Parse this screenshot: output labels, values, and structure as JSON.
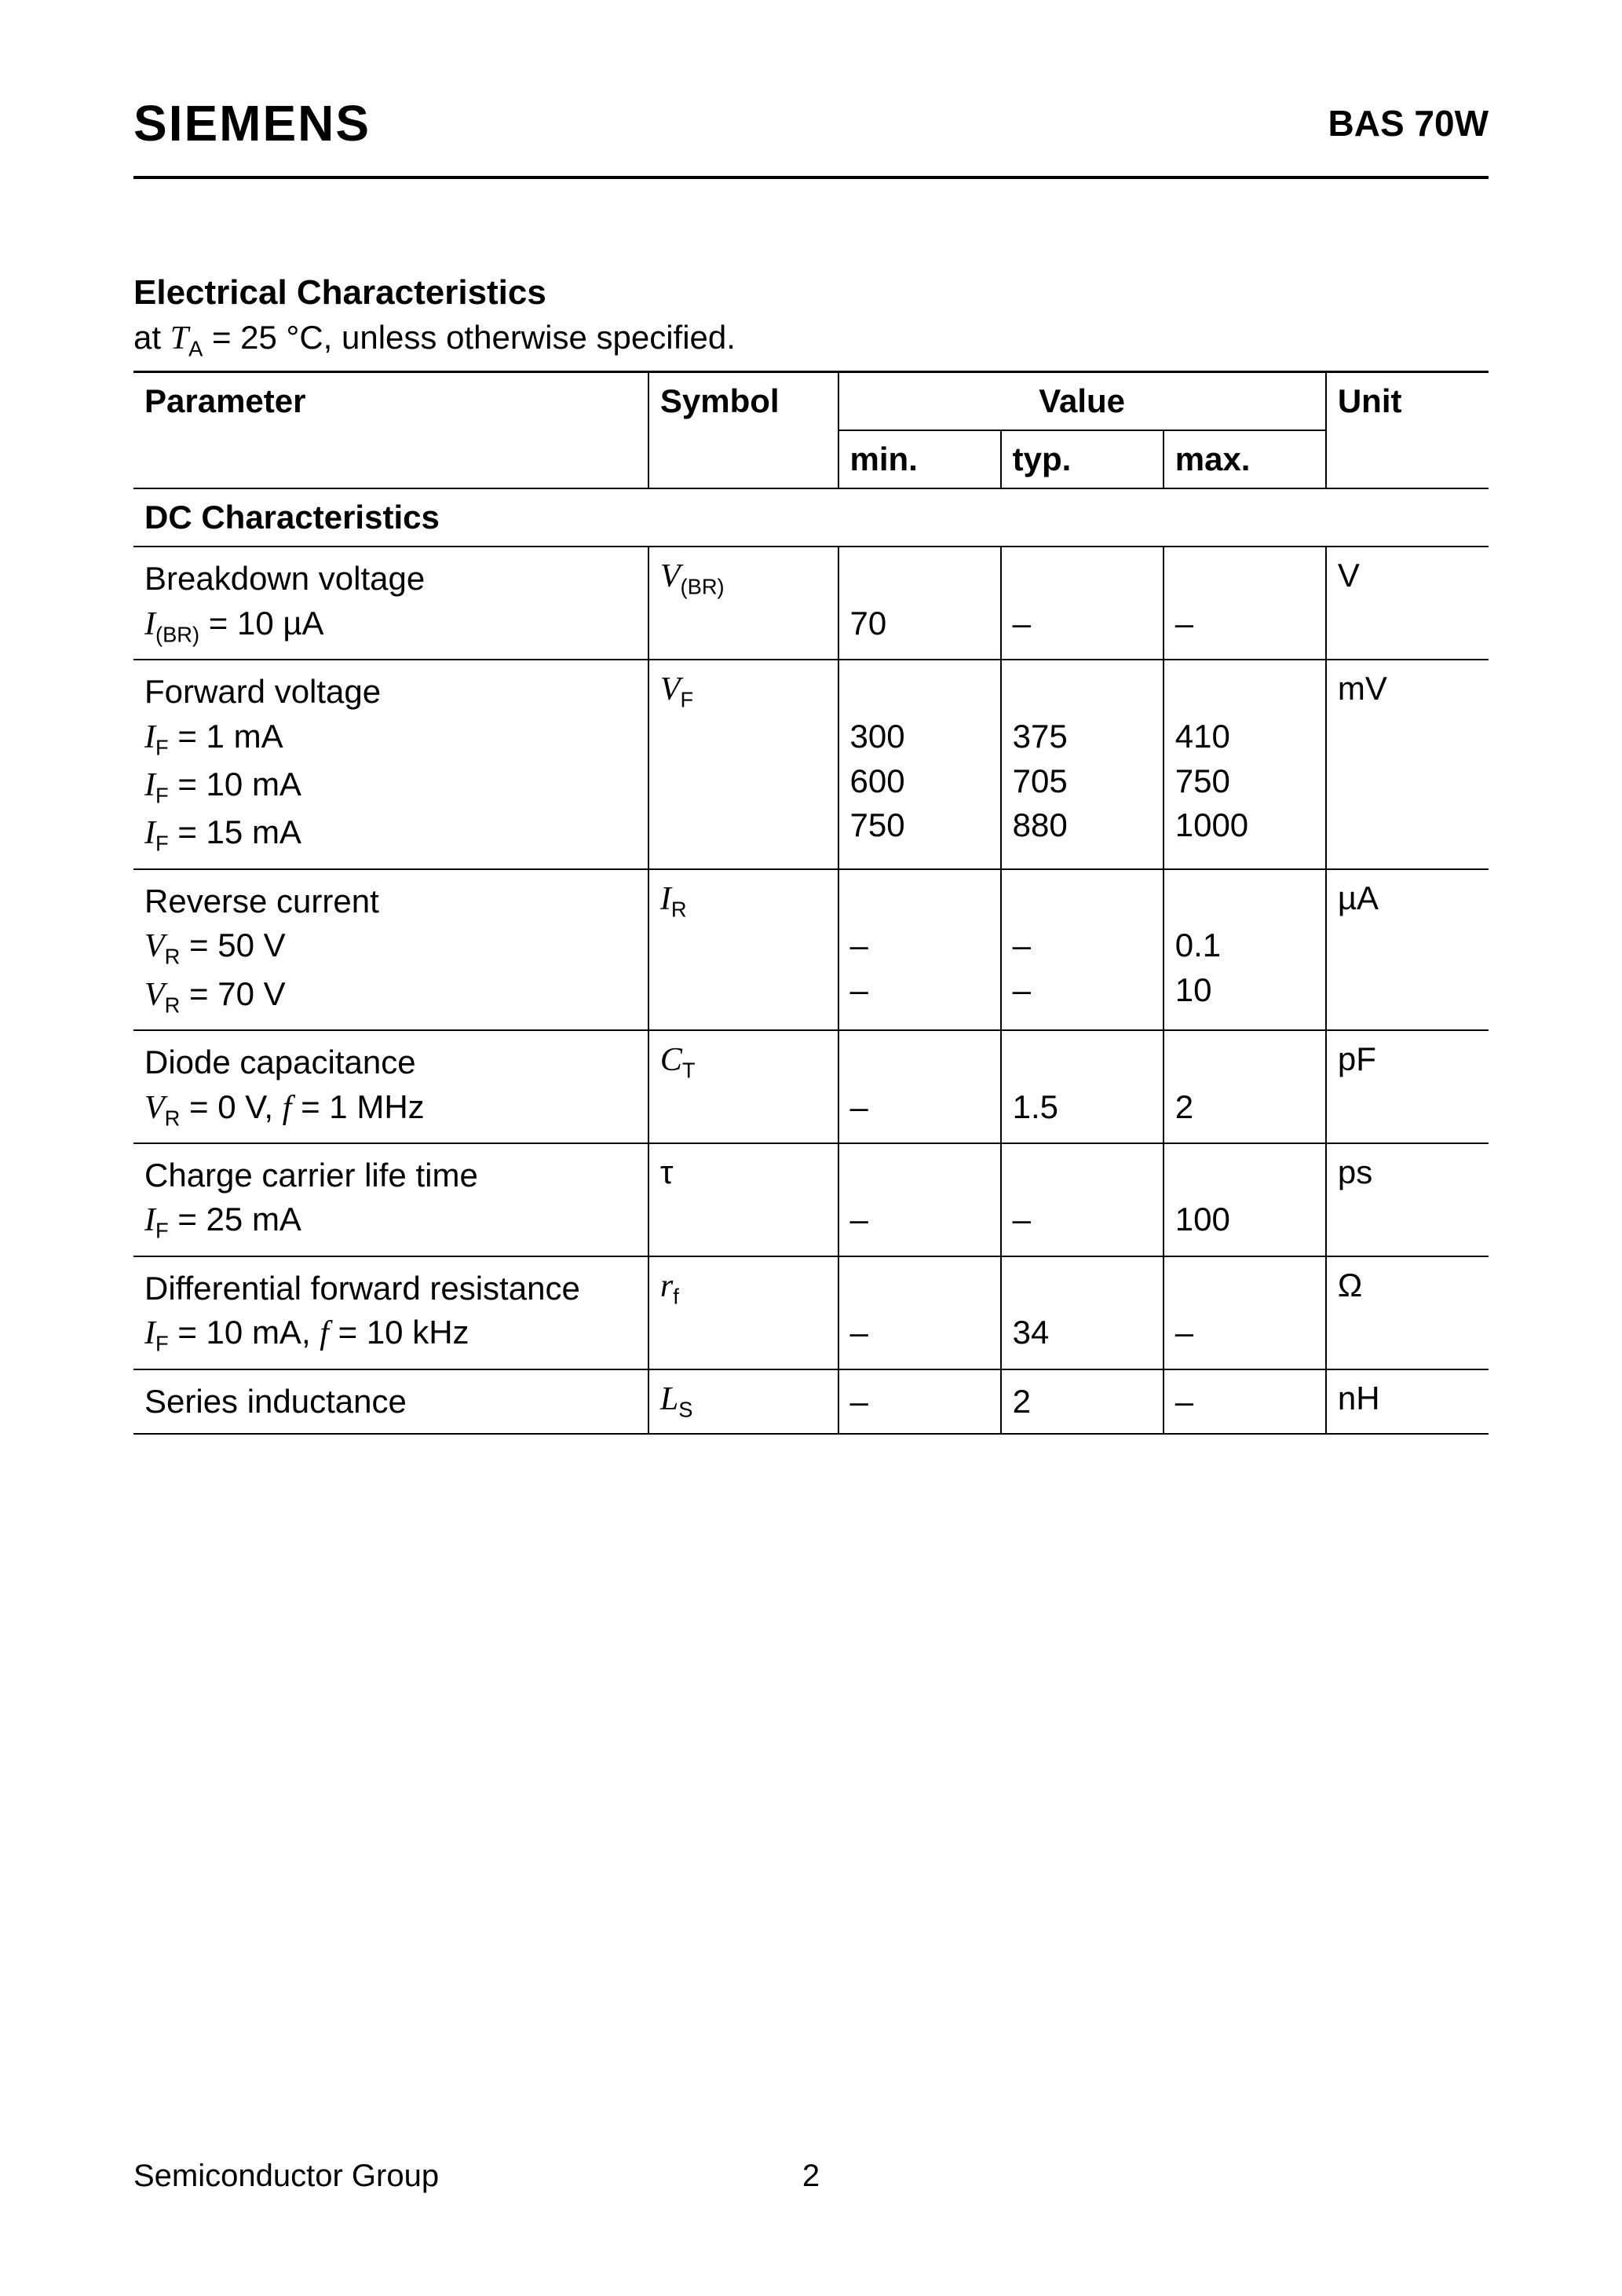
{
  "header": {
    "logo": "SIEMENS",
    "part_number": "BAS 70W"
  },
  "section": {
    "title": "Electrical Characteristics",
    "subtitle_prefix": "at ",
    "subtitle_symbol": "T",
    "subtitle_sub": "A",
    "subtitle_suffix": " = 25 °C, unless otherwise specified."
  },
  "table": {
    "headers": {
      "parameter": "Parameter",
      "symbol": "Symbol",
      "value": "Value",
      "unit": "Unit",
      "min": "min.",
      "typ": "typ.",
      "max": "max."
    },
    "section_header": "DC Characteristics",
    "rows": [
      {
        "param_title": "Breakdown voltage",
        "conditions": [
          {
            "sym": "I",
            "sub": "(BR)",
            "rest": " = 10 µA"
          }
        ],
        "symbol": {
          "sym": "V",
          "sub": "(BR)"
        },
        "min": [
          "",
          "70"
        ],
        "typ": [
          "",
          "–"
        ],
        "max": [
          "",
          "–"
        ],
        "unit": "V"
      },
      {
        "param_title": "Forward voltage",
        "conditions": [
          {
            "sym": "I",
            "sub": "F",
            "rest": " = 1 mA"
          },
          {
            "sym": "I",
            "sub": "F",
            "rest": " = 10 mA"
          },
          {
            "sym": "I",
            "sub": "F",
            "rest": " = 15 mA"
          }
        ],
        "symbol": {
          "sym": "V",
          "sub": "F"
        },
        "min": [
          "",
          "300",
          "600",
          "750"
        ],
        "typ": [
          "",
          "375",
          "705",
          "880"
        ],
        "max": [
          "",
          "410",
          "750",
          "1000"
        ],
        "unit": "mV"
      },
      {
        "param_title": "Reverse current",
        "conditions": [
          {
            "sym": "V",
            "sub": "R",
            "rest": " = 50 V"
          },
          {
            "sym": "V",
            "sub": "R",
            "rest": " = 70 V"
          }
        ],
        "symbol": {
          "sym": "I",
          "sub": "R"
        },
        "min": [
          "",
          "–",
          "–"
        ],
        "typ": [
          "",
          "–",
          "–"
        ],
        "max": [
          "",
          "0.1",
          "10"
        ],
        "unit": "µA"
      },
      {
        "param_title": "Diode capacitance",
        "conditions": [
          {
            "sym": "V",
            "sub": "R",
            "rest": " = 0 V, ",
            "sym2": "f",
            "rest2": " = 1 MHz"
          }
        ],
        "symbol": {
          "sym": "C",
          "sub": "T"
        },
        "min": [
          "",
          "–"
        ],
        "typ": [
          "",
          "1.5"
        ],
        "max": [
          "",
          "2"
        ],
        "unit": "pF"
      },
      {
        "param_title": "Charge carrier life time",
        "conditions": [
          {
            "sym": "I",
            "sub": "F",
            "rest": " = 25 mA"
          }
        ],
        "symbol": {
          "plain": "τ"
        },
        "min": [
          "",
          "–"
        ],
        "typ": [
          "",
          "–"
        ],
        "max": [
          "",
          "100"
        ],
        "unit": "ps"
      },
      {
        "param_title": "Differential forward resistance",
        "conditions": [
          {
            "sym": "I",
            "sub": "F",
            "rest": " = 10 mA, ",
            "sym2": "f",
            "rest2": " = 10 kHz"
          }
        ],
        "symbol": {
          "sym": "r",
          "sub": "f"
        },
        "min": [
          "",
          "–"
        ],
        "typ": [
          "",
          "34"
        ],
        "max": [
          "",
          "–"
        ],
        "unit": "Ω"
      },
      {
        "param_title": "Series inductance",
        "conditions": [],
        "symbol": {
          "sym": "L",
          "sub": "S"
        },
        "min": [
          "–"
        ],
        "typ": [
          "2"
        ],
        "max": [
          "–"
        ],
        "unit": "nH"
      }
    ]
  },
  "footer": {
    "left": "Semiconductor Group",
    "page": "2"
  }
}
